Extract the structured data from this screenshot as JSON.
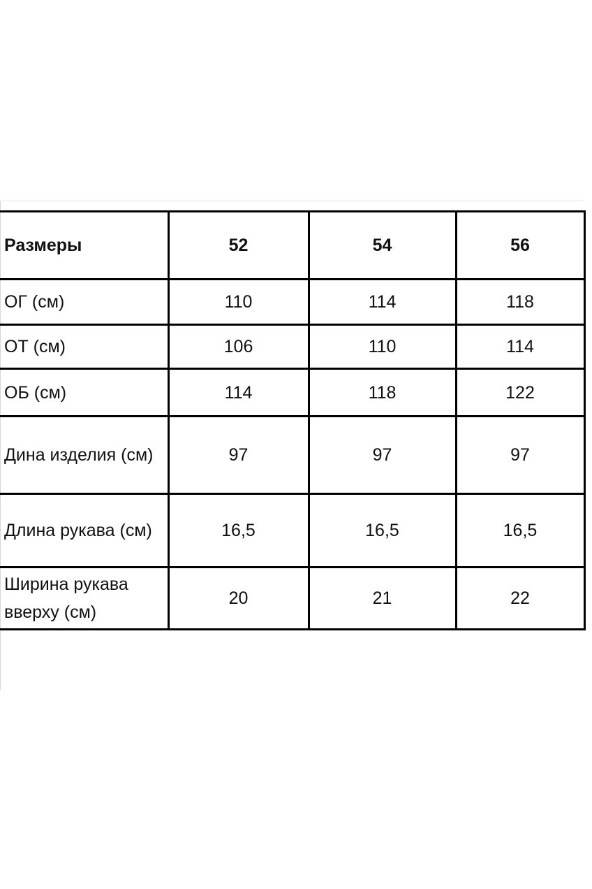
{
  "table": {
    "header": [
      "Размеры",
      "52",
      "54",
      "56"
    ],
    "rows": [
      [
        "ОГ (см)",
        "110",
        "114",
        "118"
      ],
      [
        "ОТ (см)",
        "106",
        "110",
        "114"
      ],
      [
        "ОБ (см)",
        "114",
        "118",
        "122"
      ],
      [
        "Дина изделия (см)",
        "97",
        "97",
        "97"
      ],
      [
        "Длина рукава (см)",
        "16,5",
        "16,5",
        "16,5"
      ],
      [
        "Ширина рукава вверху (см)",
        "20",
        "21",
        "22"
      ]
    ]
  }
}
